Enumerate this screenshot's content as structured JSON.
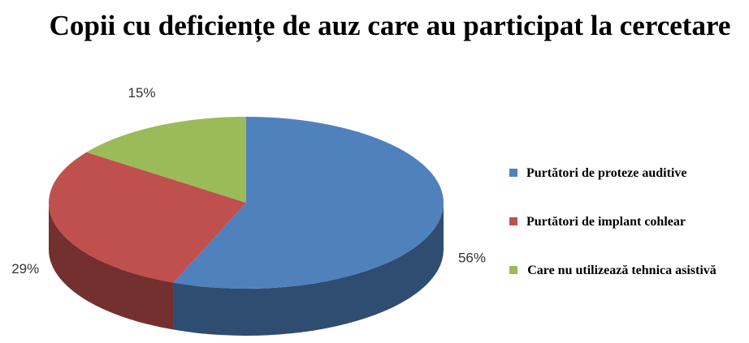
{
  "chart_data": {
    "type": "pie3d",
    "title": "Copii cu deficiențe de auz care au participat la cercetare",
    "categories": [
      "Purtători de proteze auditive",
      "Purtători de implant cohlear",
      "Care nu utilizează tehnica asistivă"
    ],
    "values": [
      56,
      29,
      15
    ],
    "value_labels": [
      "56%",
      "29%",
      "15%"
    ],
    "colors": [
      "#4f81bd",
      "#c0504d",
      "#9bbb59"
    ],
    "legend": "right"
  }
}
